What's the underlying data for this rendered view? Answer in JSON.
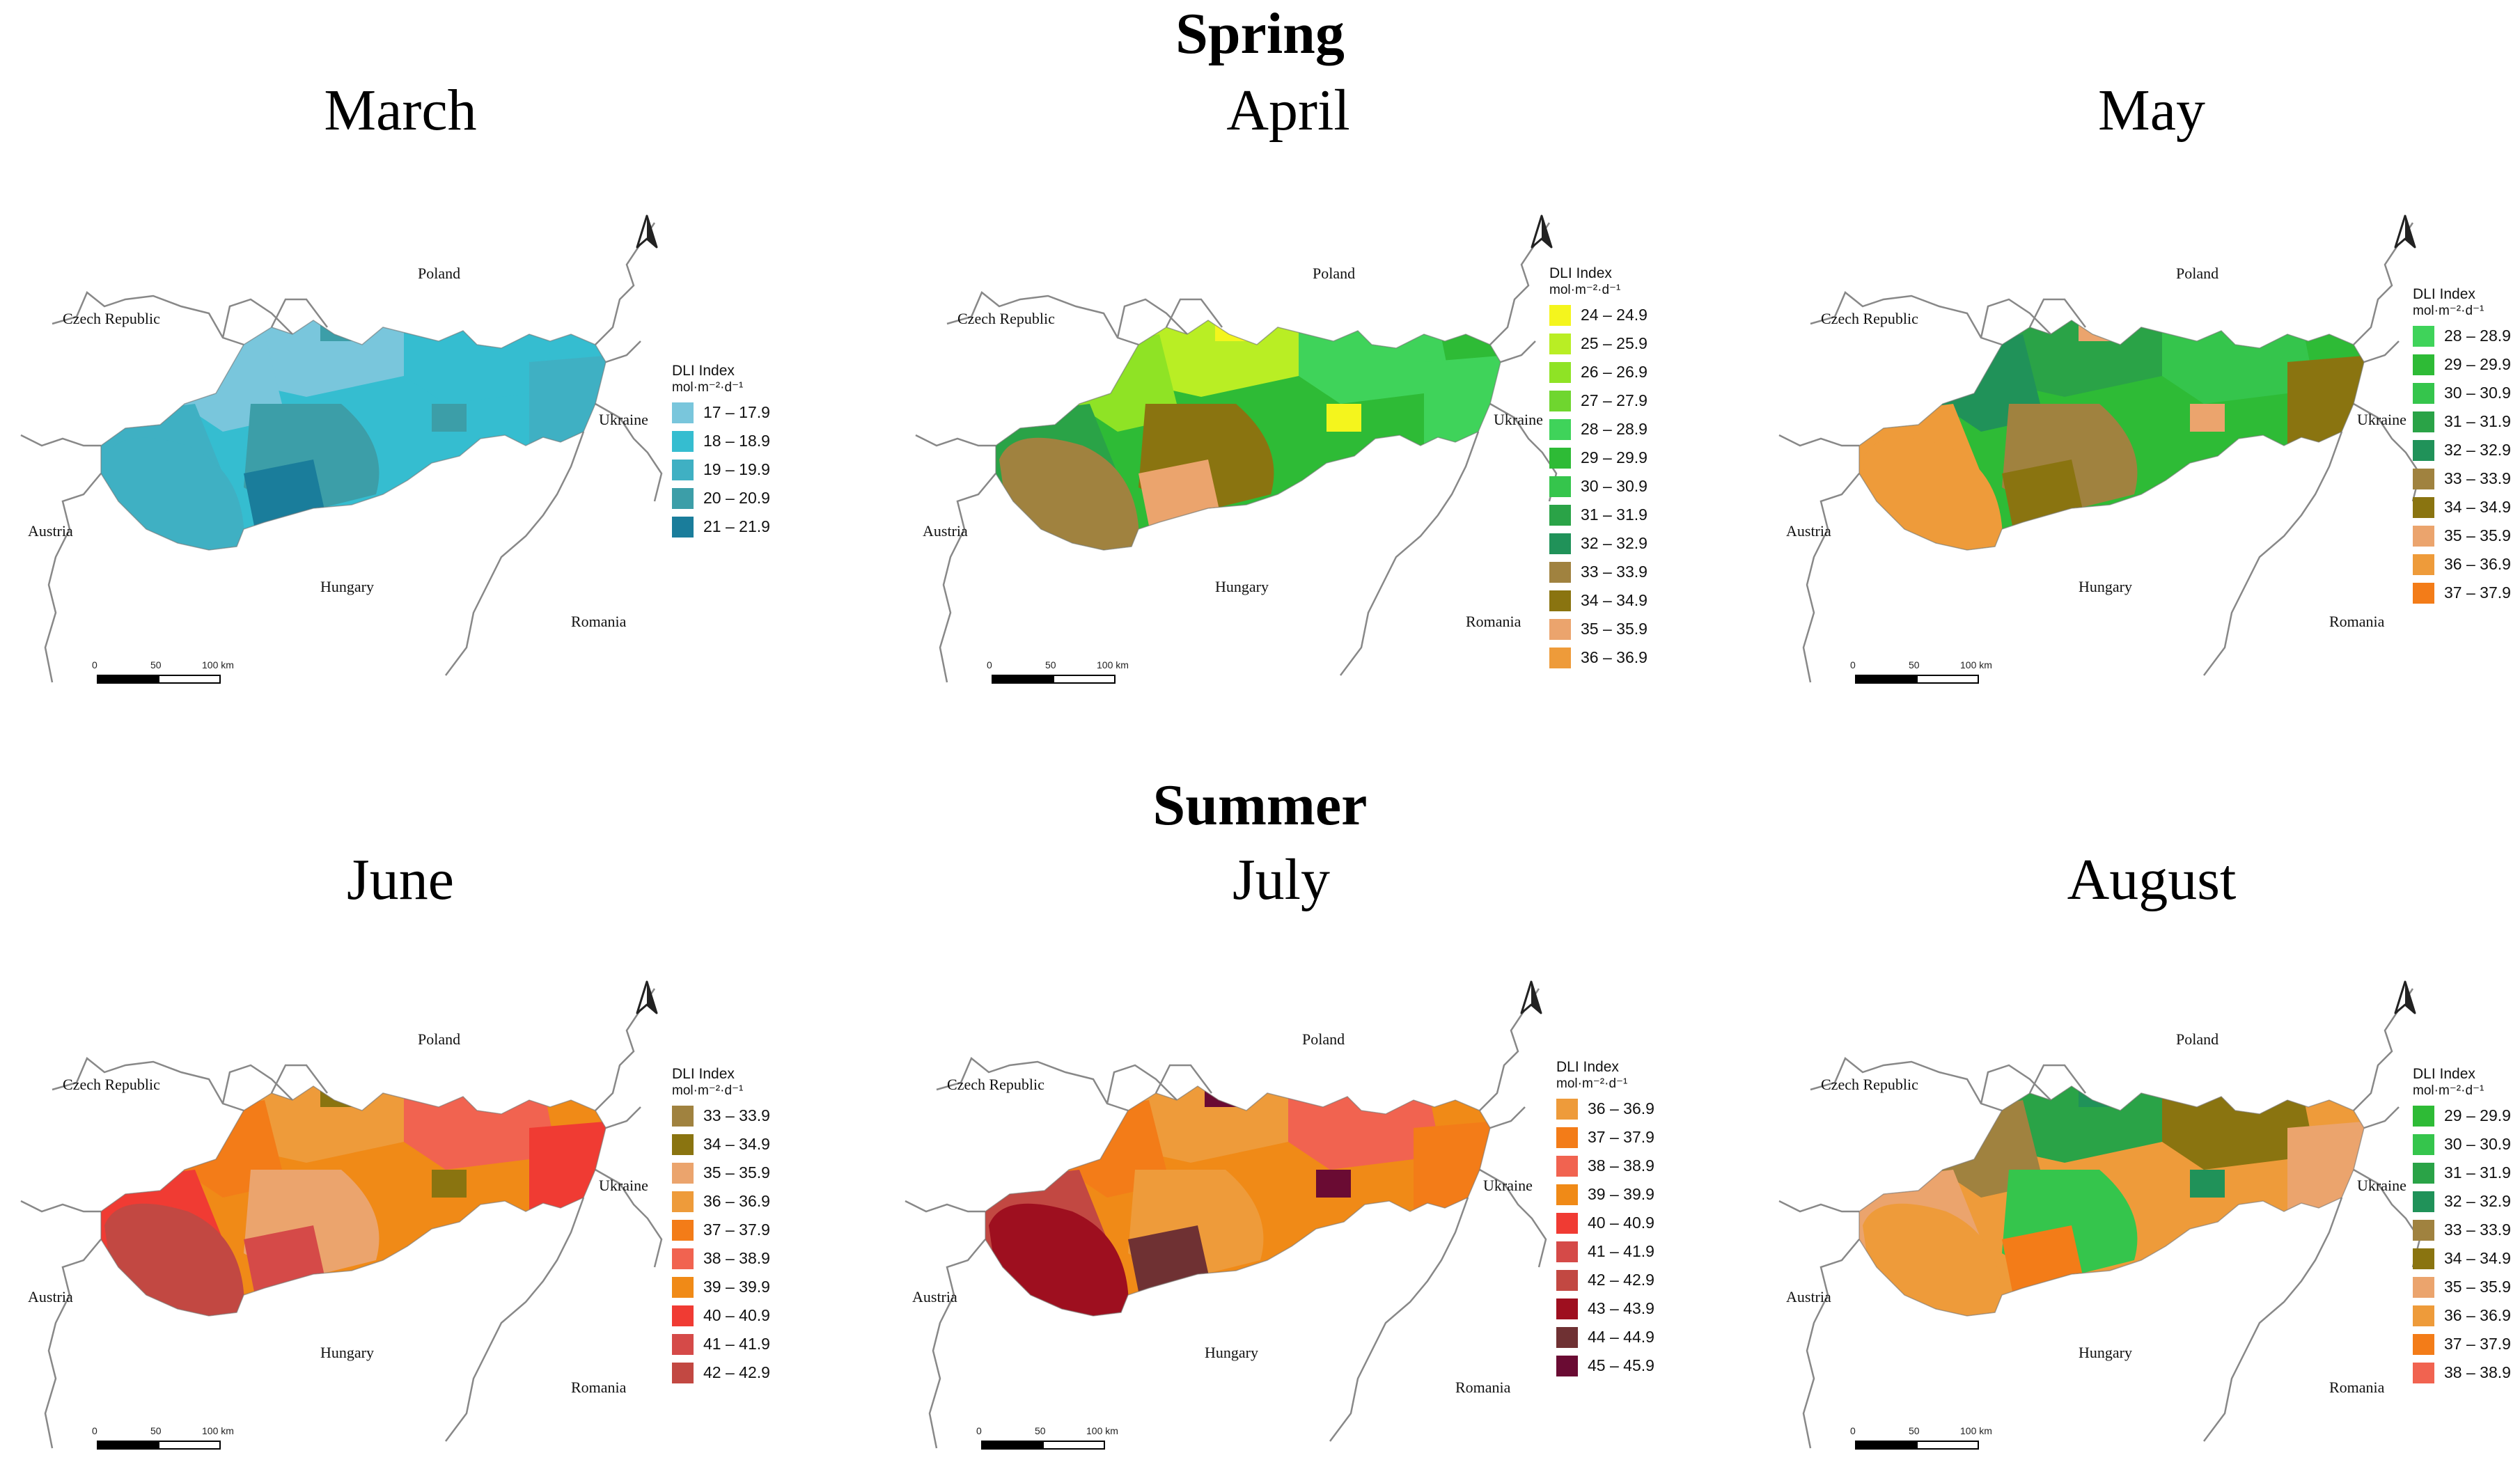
{
  "seasons": [
    {
      "title": "Spring"
    },
    {
      "title": "Summer"
    }
  ],
  "legend_title": "DLI Index",
  "legend_unit": "mol·m⁻²·d⁻¹",
  "countries": {
    "czech": "Czech Republic",
    "poland": "Poland",
    "ukraine": "Ukraine",
    "austria": "Austria",
    "hungary": "Hungary",
    "romania": "Romania"
  },
  "scale": {
    "z": "0",
    "m": "50",
    "e": "100 km"
  },
  "colors": {
    "17 – 17.9": "#79c6dc",
    "18 – 18.9": "#35bdd0",
    "19 – 19.9": "#3fb0c3",
    "20 – 20.9": "#3c9ea8",
    "21 – 21.9": "#1a7d9b",
    "24 – 24.9": "#f4f51d",
    "25 – 25.9": "#b9ee24",
    "26 – 26.9": "#8fe325",
    "27 – 27.9": "#6fd62f",
    "28 – 28.9": "#3fd35a",
    "29 – 29.9": "#2ebb36",
    "30 – 30.9": "#35c54c",
    "31 – 31.9": "#2aa347",
    "32 – 32.9": "#209259",
    "33 – 33.9": "#a0823f",
    "34 – 34.9": "#8a7410",
    "35 – 35.9": "#eba46d",
    "36 – 36.9": "#ee9b3a",
    "37 – 37.9": "#f37c18",
    "38 – 38.9": "#f16350",
    "39 – 39.9": "#f08a17",
    "40 – 40.9": "#f03b33",
    "41 – 41.9": "#d54a48",
    "42 – 42.9": "#c24842",
    "43 – 43.9": "#9e0f1f",
    "44 – 44.9": "#6f3133",
    "45 – 45.9": "#6a0b33"
  },
  "maps": [
    {
      "month": "March",
      "classes": [
        "17 – 17.9",
        "18 – 18.9",
        "19 – 19.9",
        "20 – 20.9",
        "21 – 21.9"
      ],
      "zones": {
        "base": "18 – 18.9",
        "nw": "17 – 17.9",
        "w": "19 – 19.9",
        "c": "20 – 20.9",
        "sw": "19 – 19.9",
        "sc": "21 – 21.9",
        "ne": "18 – 18.9",
        "e": "19 – 19.9",
        "n": "17 – 17.9",
        "extra": "20 – 20.9"
      }
    },
    {
      "month": "April",
      "classes": [
        "24 – 24.9",
        "25 – 25.9",
        "26 – 26.9",
        "27 – 27.9",
        "28 – 28.9",
        "29 – 29.9",
        "30 – 30.9",
        "31 – 31.9",
        "32 – 32.9",
        "33 – 33.9",
        "34 – 34.9",
        "35 – 35.9",
        "36 – 36.9"
      ],
      "zones": {
        "base": "29 – 29.9",
        "nw": "26 – 26.9",
        "w": "31 – 31.9",
        "c": "34 – 34.9",
        "sw": "33 – 33.9",
        "sc": "35 – 35.9",
        "ne": "28 – 28.9",
        "e": "28 – 28.9",
        "n": "25 – 25.9",
        "extra": "24 – 24.9"
      }
    },
    {
      "month": "May",
      "classes": [
        "28 – 28.9",
        "29 – 29.9",
        "30 – 30.9",
        "31 – 31.9",
        "32 – 32.9",
        "33 – 33.9",
        "34 – 34.9",
        "35 – 35.9",
        "36 – 36.9",
        "37 – 37.9"
      ],
      "zones": {
        "base": "29 – 29.9",
        "nw": "32 – 32.9",
        "w": "36 – 36.9",
        "c": "33 – 33.9",
        "sw": "36 – 36.9",
        "sc": "34 – 34.9",
        "ne": "30 – 30.9",
        "e": "34 – 34.9",
        "n": "31 – 31.9",
        "extra": "35 – 35.9"
      }
    },
    {
      "month": "June",
      "classes": [
        "33 – 33.9",
        "34 – 34.9",
        "35 – 35.9",
        "36 – 36.9",
        "37 – 37.9",
        "38 – 38.9",
        "39 – 39.9",
        "40 – 40.9",
        "41 – 41.9",
        "42 – 42.9"
      ],
      "zones": {
        "base": "39 – 39.9",
        "nw": "37 – 37.9",
        "w": "40 – 40.9",
        "c": "35 – 35.9",
        "sw": "42 – 42.9",
        "sc": "41 – 41.9",
        "ne": "38 – 38.9",
        "e": "40 – 40.9",
        "n": "36 – 36.9",
        "extra": "34 – 34.9"
      }
    },
    {
      "month": "July",
      "classes": [
        "36 – 36.9",
        "37 – 37.9",
        "38 – 38.9",
        "39 – 39.9",
        "40 – 40.9",
        "41 – 41.9",
        "42 – 42.9",
        "43 – 43.9",
        "44 – 44.9",
        "45 – 45.9"
      ],
      "zones": {
        "base": "39 – 39.9",
        "nw": "37 – 37.9",
        "w": "42 – 42.9",
        "c": "36 – 36.9",
        "sw": "43 – 43.9",
        "sc": "44 – 44.9",
        "ne": "38 – 38.9",
        "e": "37 – 37.9",
        "n": "36 – 36.9",
        "extra": "45 – 45.9"
      }
    },
    {
      "month": "August",
      "classes": [
        "29 – 29.9",
        "30 – 30.9",
        "31 – 31.9",
        "32 – 32.9",
        "33 – 33.9",
        "34 – 34.9",
        "35 – 35.9",
        "36 – 36.9",
        "37 – 37.9",
        "38 – 38.9"
      ],
      "zones": {
        "base": "36 – 36.9",
        "nw": "33 – 33.9",
        "w": "35 – 35.9",
        "c": "30 – 30.9",
        "sw": "36 – 36.9",
        "sc": "37 – 37.9",
        "ne": "34 – 34.9",
        "e": "35 – 35.9",
        "n": "31 – 31.9",
        "extra": "32 – 32.9"
      }
    }
  ]
}
